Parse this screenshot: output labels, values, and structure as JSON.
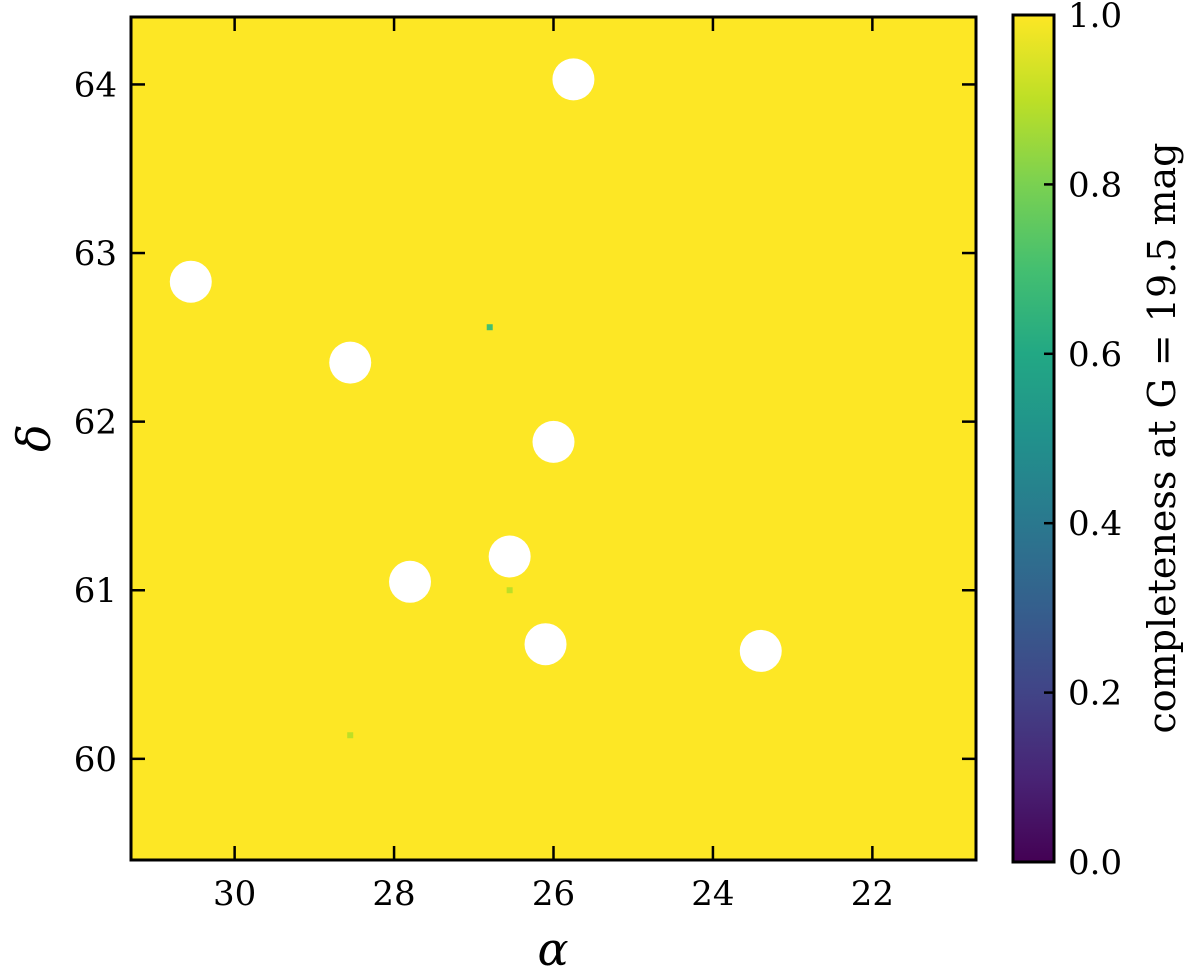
{
  "chart_data": {
    "type": "heatmap",
    "title": "",
    "xlabel": "α",
    "ylabel": "δ",
    "xlim": [
      31.3,
      20.7
    ],
    "ylim": [
      59.4,
      64.4
    ],
    "x_ticks": [
      30,
      28,
      26,
      24,
      22
    ],
    "y_ticks": [
      60,
      61,
      62,
      63,
      64
    ],
    "x_tick_labels": [
      "30",
      "28",
      "26",
      "24",
      "22"
    ],
    "y_tick_labels": [
      "60",
      "61",
      "62",
      "63",
      "64"
    ],
    "colormap": "viridis",
    "colorbar": {
      "label": "completeness at G = 19.5 mag",
      "range": [
        0.0,
        1.0
      ],
      "ticks": [
        0.0,
        0.2,
        0.4,
        0.6,
        0.8,
        1.0
      ],
      "tick_labels": [
        "0.0",
        "0.2",
        "0.4",
        "0.6",
        "0.8",
        "1.0"
      ]
    },
    "background_value": 1.0,
    "background_color": "#fde725",
    "masked_regions": [
      {
        "x": 25.75,
        "y": 64.03
      },
      {
        "x": 30.55,
        "y": 62.83
      },
      {
        "x": 28.55,
        "y": 62.35
      },
      {
        "x": 26.0,
        "y": 61.88
      },
      {
        "x": 26.55,
        "y": 61.2
      },
      {
        "x": 27.8,
        "y": 61.05
      },
      {
        "x": 26.1,
        "y": 60.68
      },
      {
        "x": 23.4,
        "y": 60.64
      }
    ],
    "low_pixels": [
      {
        "x": 26.8,
        "y": 62.56,
        "value": 0.68
      },
      {
        "x": 26.55,
        "y": 61.0,
        "value": 0.85
      },
      {
        "x": 28.55,
        "y": 60.14,
        "value": 0.85
      }
    ]
  }
}
